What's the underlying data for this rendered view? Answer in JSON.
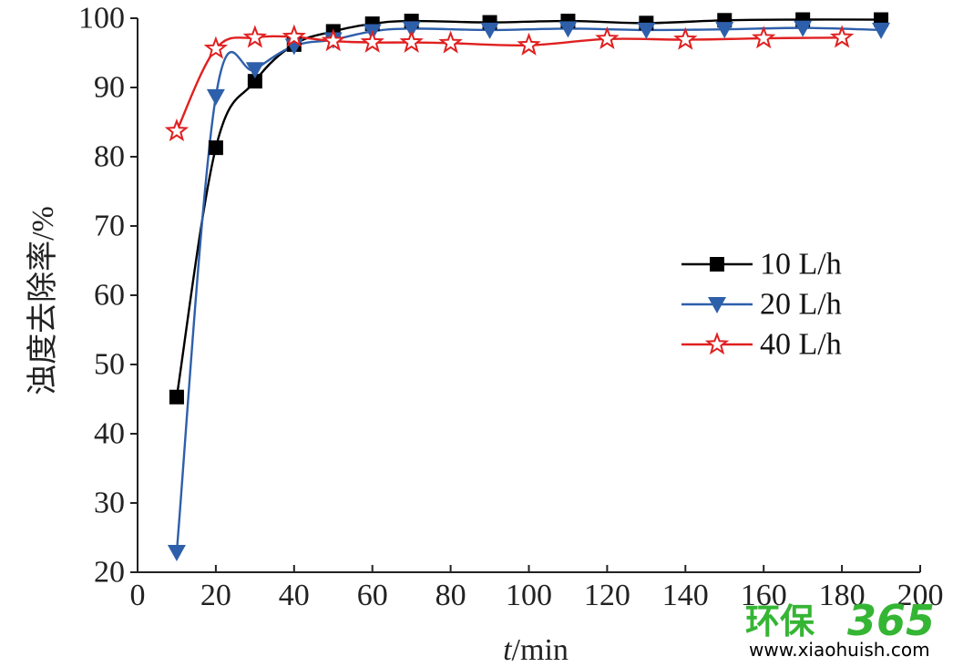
{
  "chart_data": {
    "type": "line",
    "title": "",
    "xlabel_italic": "t",
    "xlabel_rest": "/min",
    "ylabel": "浊度去除率/%",
    "xlim": [
      0,
      200
    ],
    "ylim": [
      20,
      100
    ],
    "x_ticks": [
      0,
      20,
      40,
      60,
      80,
      100,
      120,
      140,
      160,
      180,
      200
    ],
    "y_ticks": [
      20,
      30,
      40,
      50,
      60,
      70,
      80,
      90,
      100
    ],
    "grid": false,
    "legend_position": "right-middle",
    "series": [
      {
        "name": "10 L/h",
        "marker": "square",
        "color": "#000000",
        "x": [
          10,
          20,
          30,
          40,
          50,
          60,
          70,
          90,
          110,
          130,
          150,
          170,
          190
        ],
        "y": [
          45.3,
          81.3,
          90.9,
          96.2,
          98.1,
          99.2,
          99.6,
          99.4,
          99.6,
          99.3,
          99.7,
          99.8,
          99.8
        ]
      },
      {
        "name": "20 L/h",
        "marker": "triangle-down",
        "color": "#2e5faa",
        "x": [
          10,
          20,
          30,
          40,
          50,
          60,
          70,
          90,
          110,
          130,
          150,
          170,
          190
        ],
        "y": [
          22.9,
          88.7,
          92.6,
          96.0,
          96.9,
          98.1,
          98.5,
          98.3,
          98.5,
          98.3,
          98.4,
          98.6,
          98.3
        ]
      },
      {
        "name": "40 L/h",
        "marker": "star-open",
        "color": "#e02020",
        "x": [
          10,
          20,
          30,
          40,
          50,
          60,
          70,
          80,
          100,
          120,
          140,
          160,
          180
        ],
        "y": [
          83.7,
          95.6,
          97.2,
          97.3,
          96.7,
          96.5,
          96.5,
          96.4,
          96.1,
          97.0,
          96.9,
          97.1,
          97.2
        ]
      }
    ]
  },
  "watermark": {
    "brand_cn": "环保",
    "brand_num": "365",
    "url": "www.xiaohuish.com",
    "color_green": "#35b534"
  }
}
